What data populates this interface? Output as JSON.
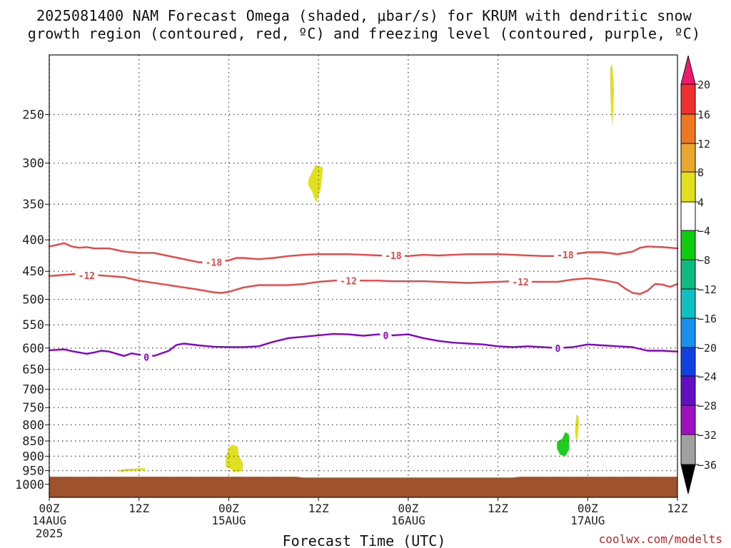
{
  "title": {
    "line1": "2025081400 NAM Forecast Omega (shaded, μbar/s) for KRUM with dendritic snow",
    "line2": "growth region (contoured, red, ºC) and freezing level (contoured, purple, ºC)"
  },
  "credit": "coolwx.com/modelts",
  "chart_data": {
    "type": "time-height section",
    "xlabel": "Forecast Time (UTC)",
    "x_ticks": [
      {
        "hour": 0,
        "label": "00Z",
        "sub": "14AUG",
        "sub2": "2025"
      },
      {
        "hour": 12,
        "label": "12Z",
        "sub": "",
        "sub2": ""
      },
      {
        "hour": 24,
        "label": "00Z",
        "sub": "15AUG",
        "sub2": ""
      },
      {
        "hour": 36,
        "label": "12Z",
        "sub": "",
        "sub2": ""
      },
      {
        "hour": 48,
        "label": "00Z",
        "sub": "16AUG",
        "sub2": ""
      },
      {
        "hour": 60,
        "label": "12Z",
        "sub": "",
        "sub2": ""
      },
      {
        "hour": 72,
        "label": "00Z",
        "sub": "17AUG",
        "sub2": ""
      },
      {
        "hour": 84,
        "label": "12Z",
        "sub": "",
        "sub2": ""
      }
    ],
    "x_range_hours": [
      0,
      84
    ],
    "y_axis": {
      "log_pressure": true,
      "range_hpa": [
        200,
        1050
      ],
      "tick_labels": [
        250,
        300,
        350,
        400,
        450,
        500,
        550,
        600,
        650,
        700,
        750,
        800,
        850,
        900,
        950,
        1000
      ]
    },
    "grid": "dotted",
    "ground": {
      "color": "#a0522d",
      "pressure_hpa": [
        [
          0,
          972
        ],
        [
          33,
          972
        ],
        [
          34,
          975
        ],
        [
          62,
          975
        ],
        [
          63,
          972
        ],
        [
          84,
          972
        ]
      ]
    },
    "contours": [
      {
        "name": "-18",
        "color": "#ee4444",
        "points": [
          [
            0,
            410
          ],
          [
            2,
            405
          ],
          [
            3,
            410
          ],
          [
            4,
            412
          ],
          [
            5,
            411
          ],
          [
            6,
            413
          ],
          [
            8,
            413
          ],
          [
            10,
            418
          ],
          [
            12,
            420
          ],
          [
            14,
            420
          ],
          [
            16,
            425
          ],
          [
            18,
            430
          ],
          [
            20,
            435
          ],
          [
            22,
            435
          ],
          [
            24,
            432
          ],
          [
            25,
            428
          ],
          [
            26,
            428
          ],
          [
            28,
            430
          ],
          [
            30,
            428
          ],
          [
            32,
            425
          ],
          [
            34,
            423
          ],
          [
            36,
            422
          ],
          [
            38,
            422
          ],
          [
            40,
            422
          ],
          [
            42,
            423
          ],
          [
            44,
            424
          ],
          [
            46,
            424
          ],
          [
            48,
            425
          ],
          [
            50,
            423
          ],
          [
            52,
            424
          ],
          [
            54,
            423
          ],
          [
            56,
            422
          ],
          [
            58,
            422
          ],
          [
            60,
            422
          ],
          [
            62,
            423
          ],
          [
            64,
            424
          ],
          [
            66,
            425
          ],
          [
            68,
            425
          ],
          [
            70,
            422
          ],
          [
            72,
            419
          ],
          [
            74,
            419
          ],
          [
            76,
            422
          ],
          [
            78,
            418
          ],
          [
            79,
            412
          ],
          [
            80,
            410
          ],
          [
            82,
            411
          ],
          [
            84,
            413
          ]
        ],
        "labels": [
          [
            22,
            435
          ],
          [
            46,
            424
          ],
          [
            69,
            423
          ]
        ]
      },
      {
        "name": "-12",
        "color": "#ee4444",
        "points": [
          [
            0,
            458
          ],
          [
            2,
            456
          ],
          [
            4,
            454
          ],
          [
            6,
            456
          ],
          [
            8,
            458
          ],
          [
            10,
            460
          ],
          [
            12,
            466
          ],
          [
            14,
            470
          ],
          [
            16,
            474
          ],
          [
            18,
            478
          ],
          [
            20,
            482
          ],
          [
            22,
            487
          ],
          [
            23,
            488
          ],
          [
            24,
            486
          ],
          [
            25,
            482
          ],
          [
            26,
            478
          ],
          [
            28,
            474
          ],
          [
            30,
            474
          ],
          [
            32,
            474
          ],
          [
            34,
            472
          ],
          [
            36,
            468
          ],
          [
            38,
            466
          ],
          [
            40,
            465
          ],
          [
            42,
            466
          ],
          [
            44,
            466
          ],
          [
            46,
            467
          ],
          [
            48,
            467
          ],
          [
            50,
            467
          ],
          [
            52,
            468
          ],
          [
            54,
            469
          ],
          [
            56,
            470
          ],
          [
            58,
            469
          ],
          [
            60,
            468
          ],
          [
            62,
            467
          ],
          [
            64,
            468
          ],
          [
            66,
            468
          ],
          [
            68,
            468
          ],
          [
            70,
            464
          ],
          [
            72,
            462
          ],
          [
            74,
            465
          ],
          [
            76,
            470
          ],
          [
            77,
            480
          ],
          [
            78,
            488
          ],
          [
            79,
            490
          ],
          [
            80,
            484
          ],
          [
            81,
            472
          ],
          [
            82,
            473
          ],
          [
            83,
            477
          ],
          [
            84,
            472
          ]
        ],
        "labels": [
          [
            5,
            457
          ],
          [
            40,
            466
          ],
          [
            63,
            468
          ]
        ]
      },
      {
        "name": "0",
        "color": "#8800cc",
        "points": [
          [
            0,
            605
          ],
          [
            2,
            603
          ],
          [
            3,
            607
          ],
          [
            4,
            610
          ],
          [
            5,
            613
          ],
          [
            6,
            610
          ],
          [
            7,
            606
          ],
          [
            8,
            608
          ],
          [
            9,
            613
          ],
          [
            10,
            618
          ],
          [
            11,
            612
          ],
          [
            12,
            615
          ],
          [
            13,
            615
          ],
          [
            14,
            618
          ],
          [
            15,
            612
          ],
          [
            16,
            606
          ],
          [
            17,
            593
          ],
          [
            18,
            590
          ],
          [
            20,
            594
          ],
          [
            22,
            597
          ],
          [
            24,
            598
          ],
          [
            26,
            598
          ],
          [
            28,
            596
          ],
          [
            30,
            586
          ],
          [
            32,
            578
          ],
          [
            34,
            575
          ],
          [
            36,
            572
          ],
          [
            38,
            569
          ],
          [
            40,
            570
          ],
          [
            42,
            573
          ],
          [
            44,
            570
          ],
          [
            46,
            572
          ],
          [
            48,
            570
          ],
          [
            50,
            578
          ],
          [
            52,
            584
          ],
          [
            54,
            588
          ],
          [
            56,
            590
          ],
          [
            58,
            592
          ],
          [
            60,
            596
          ],
          [
            62,
            598
          ],
          [
            64,
            596
          ],
          [
            66,
            598
          ],
          [
            68,
            600
          ],
          [
            70,
            598
          ],
          [
            72,
            592
          ],
          [
            74,
            594
          ],
          [
            76,
            596
          ],
          [
            78,
            598
          ],
          [
            79,
            602
          ],
          [
            80,
            606
          ],
          [
            82,
            606
          ],
          [
            84,
            608
          ]
        ],
        "labels": [
          [
            13,
            621
          ],
          [
            45,
            572
          ],
          [
            68,
            600
          ]
        ]
      }
    ],
    "shaded_regions": [
      {
        "color": "#e0e020",
        "polygon": [
          [
            75.0,
            210
          ],
          [
            75.3,
            207
          ],
          [
            75.5,
            228
          ],
          [
            75.4,
            248
          ],
          [
            75.3,
            262
          ],
          [
            75.1,
            245
          ],
          [
            75.0,
            225
          ]
        ]
      },
      {
        "color": "#e0e020",
        "polygon": [
          [
            34.7,
            318
          ],
          [
            35.6,
            302
          ],
          [
            36.6,
            305
          ],
          [
            36.3,
            330
          ],
          [
            35.7,
            348
          ],
          [
            35.2,
            335
          ],
          [
            34.6,
            325
          ]
        ]
      },
      {
        "color": "#e0e020",
        "polygon": [
          [
            23.6,
            905
          ],
          [
            24.0,
            870
          ],
          [
            24.5,
            862
          ],
          [
            25.2,
            868
          ],
          [
            25.3,
            895
          ],
          [
            25.9,
            925
          ],
          [
            25.8,
            952
          ],
          [
            24.6,
            955
          ],
          [
            24.4,
            945
          ],
          [
            23.6,
            938
          ]
        ]
      },
      {
        "color": "#e0e020",
        "polygon": [
          [
            9.3,
            950
          ],
          [
            10.0,
            944
          ],
          [
            12.8,
            941
          ],
          [
            12.8,
            948
          ],
          [
            10.5,
            952
          ],
          [
            9.4,
            954
          ]
        ]
      },
      {
        "color": "#20cc20",
        "polygon": [
          [
            67.9,
            852
          ],
          [
            68.6,
            843
          ],
          [
            69.0,
            822
          ],
          [
            69.5,
            830
          ],
          [
            69.5,
            878
          ],
          [
            69.0,
            900
          ],
          [
            68.3,
            895
          ],
          [
            67.9,
            875
          ]
        ]
      },
      {
        "color": "#e0e020",
        "polygon": [
          [
            70.5,
            770
          ],
          [
            70.8,
            775
          ],
          [
            70.8,
            810
          ],
          [
            70.5,
            860
          ],
          [
            70.3,
            820
          ],
          [
            70.4,
            790
          ]
        ]
      }
    ],
    "colorbar": {
      "levels": [
        "20",
        "16",
        "12",
        "8",
        "4",
        "−4",
        "−8",
        "−12",
        "−16",
        "−20",
        "−24",
        "−28",
        "−32",
        "−36"
      ],
      "colors": [
        "#ee1b6c",
        "#ee4444",
        "#ee7722",
        "#e8a830",
        "#e0c828",
        "#e0e020",
        "#ffffff",
        "#10cc10",
        "#10bb80",
        "#10c0c0",
        "#1890ee",
        "#1040e0",
        "#6010c0",
        "#a010c0",
        "#a0a0a0",
        "#000000"
      ]
    }
  }
}
